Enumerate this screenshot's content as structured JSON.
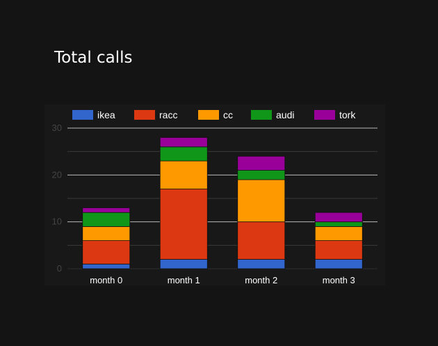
{
  "chart_data": {
    "type": "bar",
    "stacked": true,
    "title": "Total calls",
    "categories": [
      "month 0",
      "month 1",
      "month 2",
      "month 3"
    ],
    "series": [
      {
        "name": "ikea",
        "color": "#3366cc",
        "values": [
          1,
          2,
          2,
          2
        ]
      },
      {
        "name": "racc",
        "color": "#dc3912",
        "values": [
          5,
          15,
          8,
          4
        ]
      },
      {
        "name": "cc",
        "color": "#ff9900",
        "values": [
          3,
          6,
          9,
          3
        ]
      },
      {
        "name": "audi",
        "color": "#109618",
        "values": [
          3,
          3,
          2,
          1
        ]
      },
      {
        "name": "tork",
        "color": "#990099",
        "values": [
          1,
          2,
          3,
          2
        ]
      }
    ],
    "ylim": [
      0,
      30
    ],
    "y_ticks": [
      0,
      10,
      20,
      30
    ],
    "grid": true,
    "legend_position": "top",
    "xlabel": "",
    "ylabel": ""
  }
}
